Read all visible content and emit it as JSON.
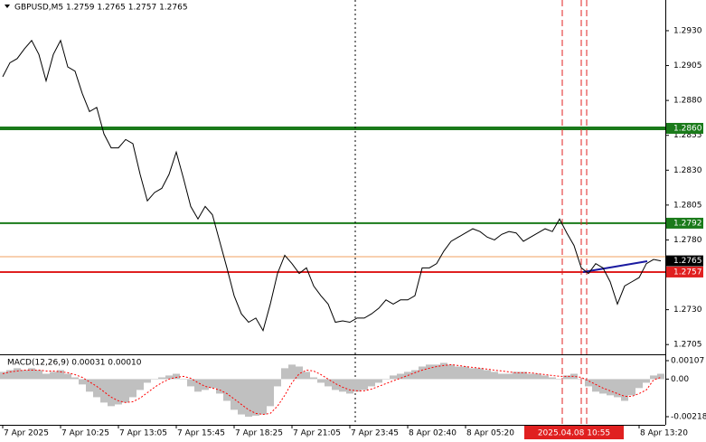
{
  "header": "GBPUSD,M5  1.2759 1.2765 1.2757 1.2765",
  "crosshair_label": "2025.04.08 10:55",
  "chart_data": [
    {
      "type": "line",
      "categories": [
        "7 Apr 2025",
        null,
        null,
        null,
        null,
        null,
        null,
        null,
        "7 Apr 10:25",
        null,
        null,
        null,
        null,
        null,
        null,
        null,
        "7 Apr 13:05",
        null,
        null,
        null,
        null,
        null,
        null,
        null,
        "7 Apr 15:45",
        null,
        null,
        null,
        null,
        null,
        null,
        null,
        "7 Apr 18:25",
        null,
        null,
        null,
        null,
        null,
        null,
        null,
        "7 Apr 21:05",
        null,
        null,
        null,
        null,
        null,
        null,
        null,
        "7 Apr 23:45",
        null,
        null,
        null,
        null,
        null,
        null,
        null,
        "8 Apr 02:40",
        null,
        null,
        null,
        null,
        null,
        null,
        null,
        "8 Apr 05:20",
        null,
        null,
        null,
        null,
        null,
        null,
        null,
        null,
        null,
        null,
        null,
        null,
        null,
        null,
        null,
        null,
        null,
        null,
        null,
        null,
        null,
        null,
        null,
        "8 Apr 13:20",
        null,
        null,
        null
      ],
      "series": [
        {
          "color": "#000000",
          "values": [
            1.2897,
            1.2907,
            1.291,
            1.2917,
            1.2923,
            1.2913,
            1.2894,
            1.2913,
            1.2923,
            1.2904,
            1.2901,
            1.2885,
            1.2872,
            1.2875,
            1.2856,
            1.2846,
            1.2846,
            1.2852,
            1.2849,
            1.2827,
            1.2808,
            1.2814,
            1.2817,
            1.2827,
            1.2843,
            1.2824,
            1.2804,
            1.2795,
            1.2804,
            1.2798,
            1.2779,
            1.276,
            1.274,
            1.2727,
            1.2721,
            1.2724,
            1.2715,
            1.2734,
            1.2756,
            1.2769,
            1.2763,
            1.2756,
            1.276,
            1.2747,
            1.274,
            1.2734,
            1.2721,
            1.2722,
            1.2721,
            1.2724,
            1.2724,
            1.2727,
            1.2731,
            1.2737,
            1.2734,
            1.2737,
            1.2737,
            1.274,
            1.276,
            1.276,
            1.2763,
            1.2772,
            1.2779,
            1.2782,
            1.2785,
            1.2788,
            1.2786,
            1.2782,
            1.278,
            1.2784,
            1.2786,
            1.2785,
            1.2779,
            1.2782,
            1.2785,
            1.2788,
            1.2786,
            1.2795,
            1.2785,
            1.2776,
            1.276,
            1.2756,
            1.2763,
            1.276,
            1.275,
            1.2734,
            1.2747,
            1.275,
            1.2753,
            1.2763,
            1.2766,
            1.2765
          ]
        }
      ],
      "ylim": [
        1.2698,
        1.2952
      ],
      "yticks": [
        {
          "value": 1.293,
          "label": "1.2930"
        },
        1.2905,
        {
          "value": 1.288,
          "label": "1.2880"
        },
        1.2855,
        {
          "value": 1.283,
          "label": "1.2830"
        },
        1.2805,
        {
          "value": 1.278,
          "label": "1.2780"
        },
        1.2755,
        {
          "value": 1.273,
          "label": "1.2730"
        },
        1.2705
      ],
      "grid": false,
      "levels": [
        {
          "value": 1.286,
          "label": "1.2860",
          "color": "#1a7a1a",
          "width": 4
        },
        {
          "value": 1.2792,
          "label": "1.2792",
          "color": "#1a7a1a",
          "width": 2
        },
        {
          "value": 1.2768,
          "color": "#f0a060",
          "width": 1
        },
        {
          "value": 1.2765,
          "label": "1.2765",
          "color": "#000000",
          "width": 0
        },
        {
          "value": 1.2757,
          "label": "1.2757",
          "color": "#e02020",
          "width": 2
        }
      ]
    },
    {
      "type": "bar",
      "title": "MACD(12,26,9) 0.00031 0.00010",
      "ylim": [
        -0.00218,
        0.00107
      ],
      "yticks": [
        0.00107,
        {
          "value": 0,
          "label": "0.00"
        },
        -0.00218
      ],
      "series": [
        {
          "type": "bar",
          "color": "#c0c0c0",
          "values": [
            0.00042,
            0.00052,
            0.00063,
            0.00052,
            0.00063,
            0.00052,
            0.00031,
            0.00042,
            0.00052,
            0.00031,
            0.0001,
            -0.00031,
            -0.00073,
            -0.00105,
            -0.00136,
            -0.00157,
            -0.00147,
            -0.00136,
            -0.00105,
            -0.00063,
            -0.00021,
            0,
            0.0001,
            0.00021,
            0.00031,
            0,
            -0.00042,
            -0.00073,
            -0.00063,
            -0.00052,
            -0.00084,
            -0.00126,
            -0.00178,
            -0.00205,
            -0.00218,
            -0.00212,
            -0.00205,
            -0.00157,
            -0.00042,
            0.00063,
            0.00084,
            0.00073,
            0.00042,
            0.0001,
            -0.00021,
            -0.00042,
            -0.00063,
            -0.00073,
            -0.00084,
            -0.00073,
            -0.00063,
            -0.00042,
            -0.00021,
            0,
            0.00021,
            0.00031,
            0.00042,
            0.00052,
            0.00073,
            0.00084,
            0.00084,
            0.00094,
            0.00084,
            0.00073,
            0.00073,
            0.00063,
            0.00063,
            0.00052,
            0.00042,
            0.00031,
            0.00031,
            0.00042,
            0.00042,
            0.00031,
            0.00031,
            0.00021,
            0.0001,
            0,
            0.00021,
            0.00031,
            0,
            -0.00042,
            -0.00073,
            -0.00084,
            -0.00094,
            -0.00105,
            -0.00126,
            -0.00094,
            -0.00052,
            -0.00021,
            0.00021,
            0.00031
          ]
        },
        {
          "type": "line",
          "color": "#ff0000",
          "dashed": true,
          "values": [
            0.00031,
            0.00042,
            0.00047,
            0.00052,
            0.00052,
            0.00052,
            0.00047,
            0.00047,
            0.00042,
            0.00037,
            0.00026,
            0.0001,
            -0.00016,
            -0.00042,
            -0.00073,
            -0.00105,
            -0.00126,
            -0.00136,
            -0.00131,
            -0.0011,
            -0.00079,
            -0.00047,
            -0.00021,
            0,
            0.0001,
            0.00016,
            5e-05,
            -0.00021,
            -0.00042,
            -0.00052,
            -0.00063,
            -0.00084,
            -0.00115,
            -0.00147,
            -0.00178,
            -0.00199,
            -0.00205,
            -0.00199,
            -0.00157,
            -0.00094,
            -0.00021,
            0.00031,
            0.00052,
            0.00047,
            0.00026,
            0,
            -0.00026,
            -0.00047,
            -0.00063,
            -0.00068,
            -0.00068,
            -0.00058,
            -0.00042,
            -0.00026,
            -0.0001,
            5e-05,
            0.00021,
            0.00037,
            0.00052,
            0.00063,
            0.00073,
            0.00079,
            0.00084,
            0.00079,
            0.00073,
            0.00068,
            0.00063,
            0.00058,
            0.00052,
            0.00047,
            0.00042,
            0.00037,
            0.00037,
            0.00037,
            0.00031,
            0.00026,
            0.00021,
            0.00016,
            0.00016,
            0.00016,
            0.0001,
            -0.0001,
            -0.00031,
            -0.00052,
            -0.00068,
            -0.00084,
            -0.001,
            -0.001,
            -0.00084,
            -0.00063,
            -5e-05,
            0.0001
          ]
        }
      ]
    }
  ]
}
